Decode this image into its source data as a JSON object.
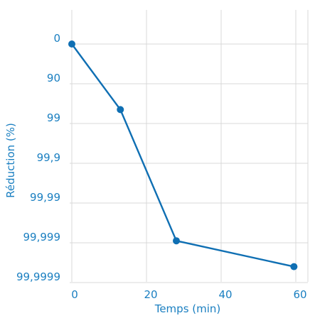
{
  "chart_data": {
    "type": "line",
    "title": "",
    "xlabel": "Temps (min)",
    "ylabel": "Réduction  (%)",
    "x_ticks": [
      {
        "value": 0,
        "label": "0"
      },
      {
        "value": 20,
        "label": "20"
      },
      {
        "value": 40,
        "label": "40"
      },
      {
        "value": 60,
        "label": "60"
      }
    ],
    "y_scale": "log-reduction",
    "y_ticks": [
      {
        "log_reduction": 0,
        "label": "0"
      },
      {
        "log_reduction": 1,
        "label": "90"
      },
      {
        "log_reduction": 2,
        "label": "99"
      },
      {
        "log_reduction": 3,
        "label": "99,9"
      },
      {
        "log_reduction": 4,
        "label": "99,99"
      },
      {
        "log_reduction": 5,
        "label": "99,999"
      },
      {
        "log_reduction": 6,
        "label": "99,9999"
      }
    ],
    "xlim": [
      -2,
      68
    ],
    "ylim_log_reduction": [
      -0.9,
      6.0
    ],
    "grid": true,
    "series": [
      {
        "color": "#0f6fb3",
        "points": [
          {
            "x": 0,
            "log_reduction": 0.0,
            "reduction_pct": 0
          },
          {
            "x": 13,
            "log_reduction": 1.65,
            "reduction_pct": 97.8
          },
          {
            "x": 28,
            "log_reduction": 4.95,
            "reduction_pct": 99.9989
          },
          {
            "x": 59.5,
            "log_reduction": 5.6,
            "reduction_pct": 99.99975
          }
        ]
      }
    ]
  }
}
